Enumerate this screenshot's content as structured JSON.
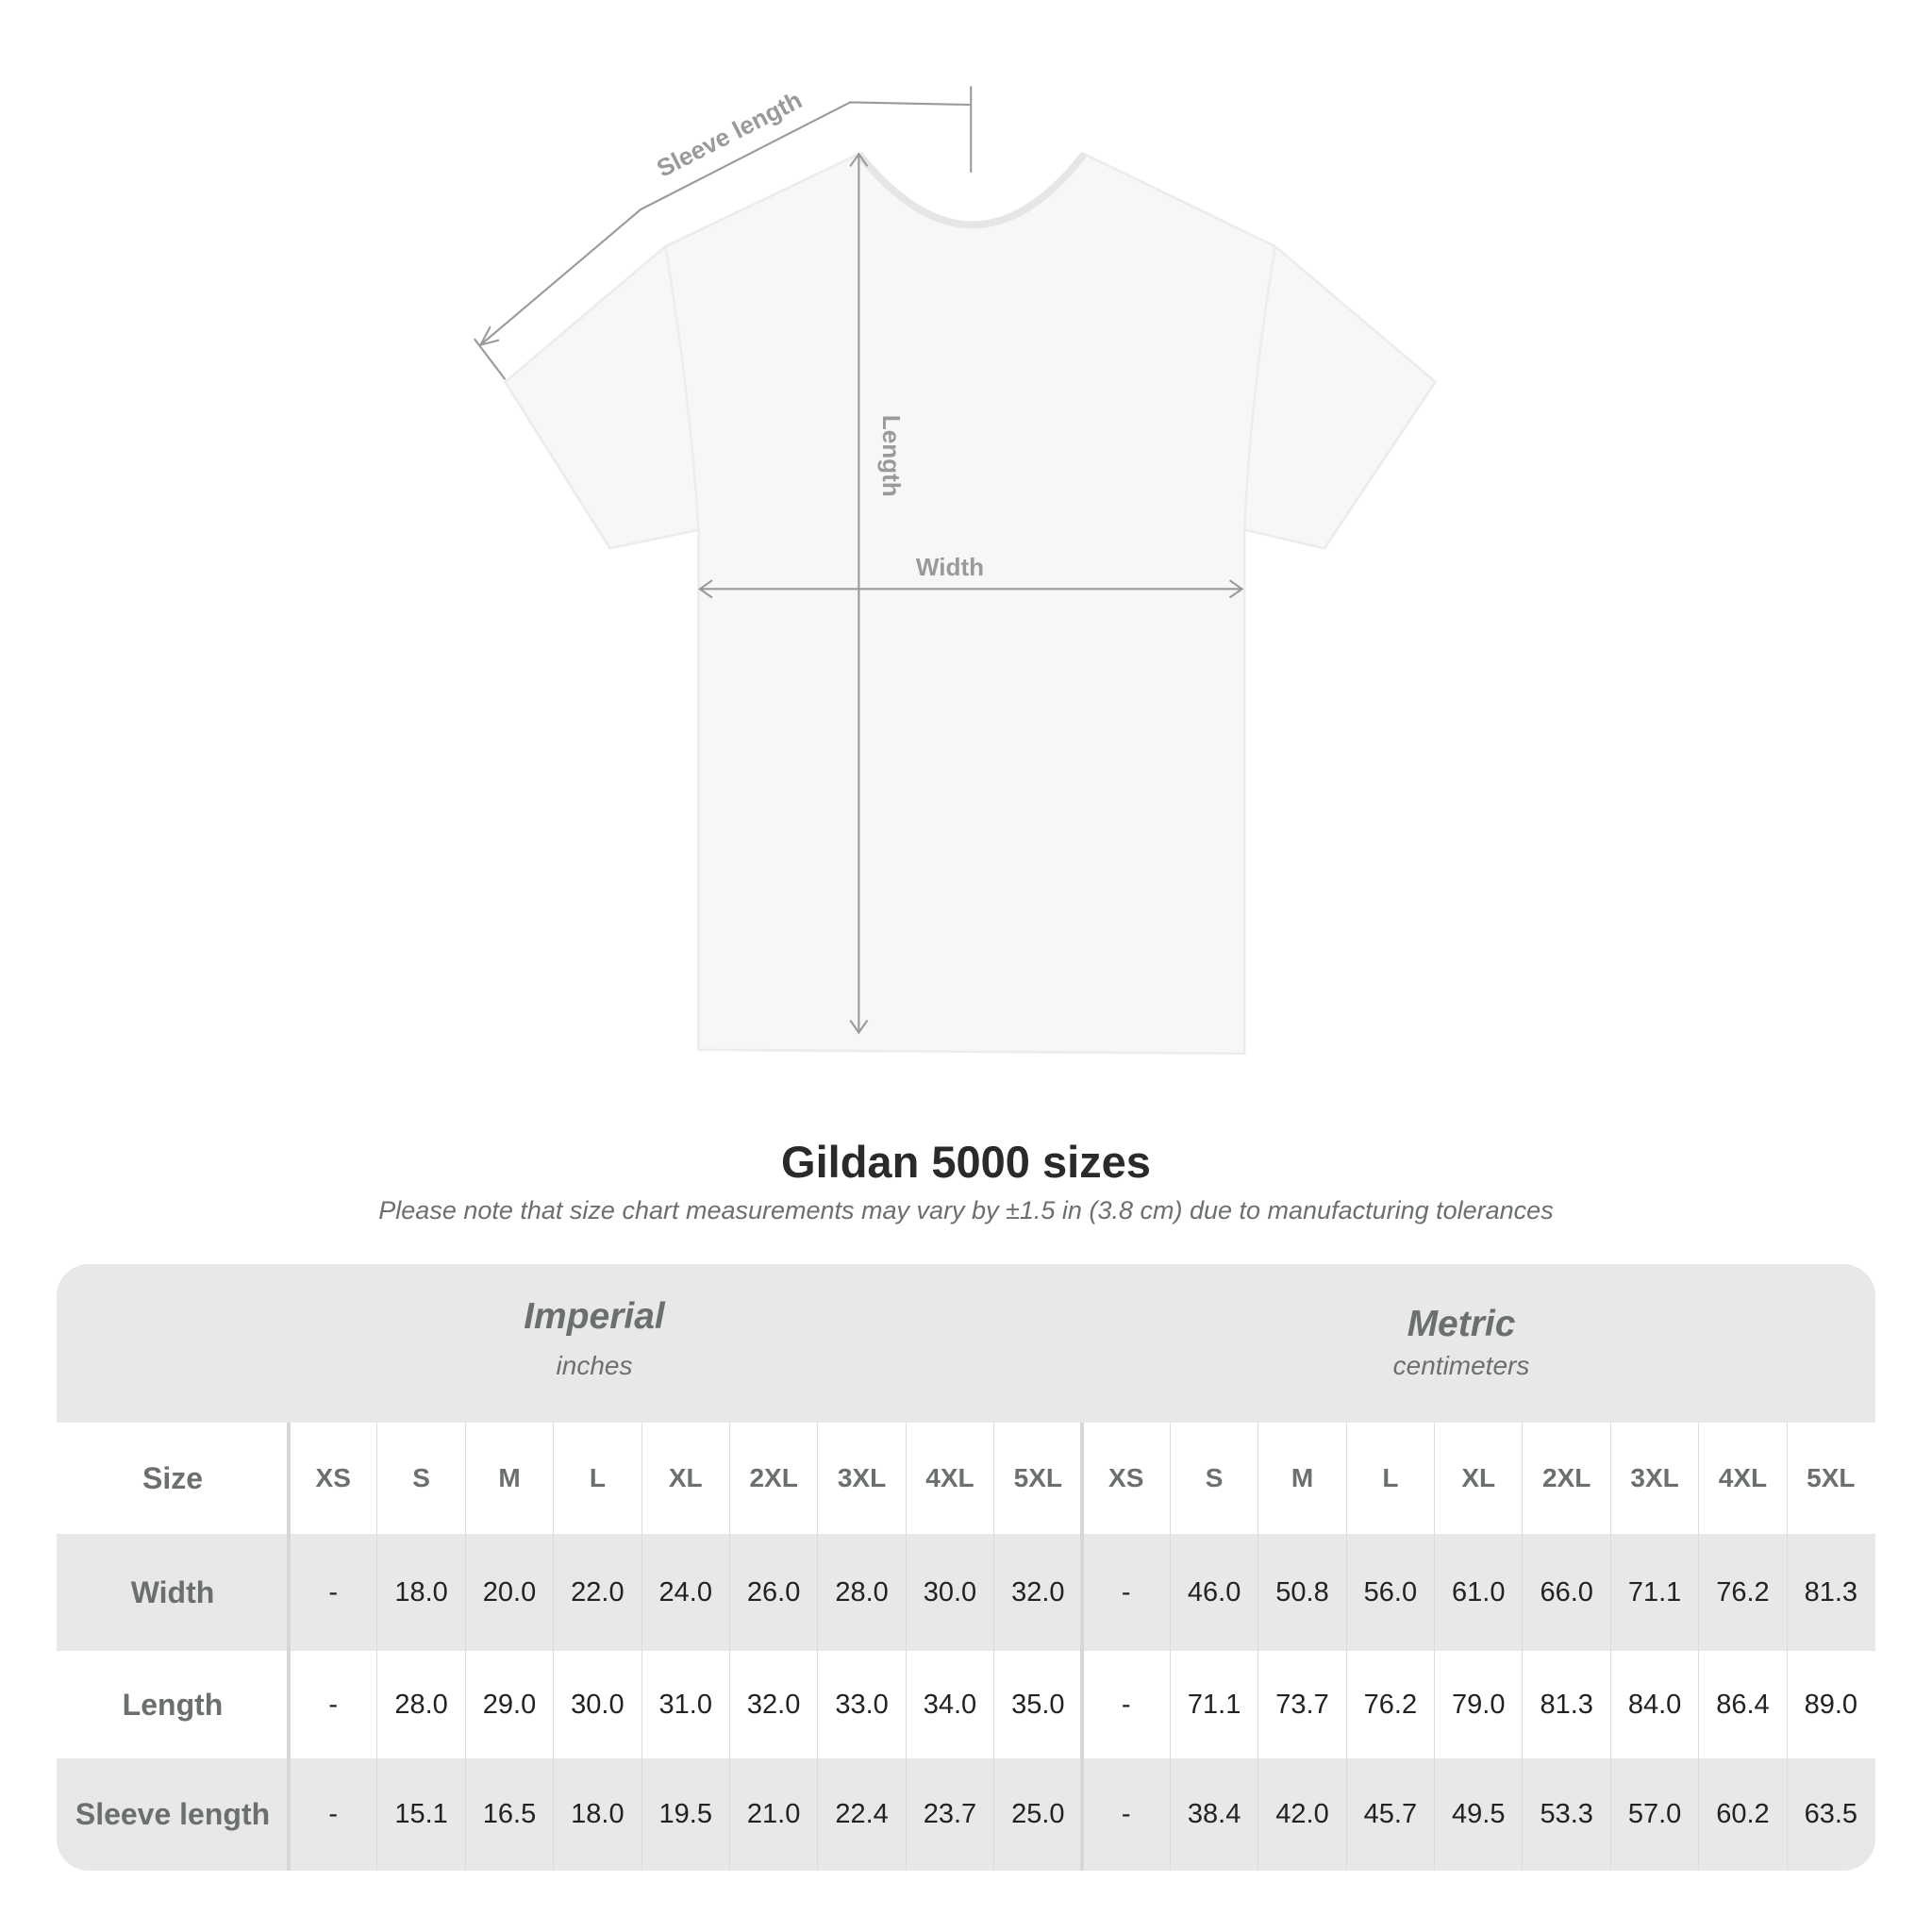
{
  "diagram": {
    "sleeve_label": "Sleeve length",
    "length_label": "Length",
    "width_label": "Width"
  },
  "title": "Gildan 5000 sizes",
  "note": "Please note that size chart measurements may vary by ±1.5 in (3.8 cm) due to manufacturing tolerances",
  "table": {
    "imperial": {
      "name": "Imperial",
      "unit": "inches"
    },
    "metric": {
      "name": "Metric",
      "unit": "centimeters"
    },
    "size_label": "Size",
    "sizes": [
      "XS",
      "S",
      "M",
      "L",
      "XL",
      "2XL",
      "3XL",
      "4XL",
      "5XL"
    ],
    "rows": [
      {
        "label": "Width",
        "imperial": [
          "-",
          "18.0",
          "20.0",
          "22.0",
          "24.0",
          "26.0",
          "28.0",
          "30.0",
          "32.0"
        ],
        "metric": [
          "-",
          "46.0",
          "50.8",
          "56.0",
          "61.0",
          "66.0",
          "71.1",
          "76.2",
          "81.3"
        ]
      },
      {
        "label": "Length",
        "imperial": [
          "-",
          "28.0",
          "29.0",
          "30.0",
          "31.0",
          "32.0",
          "33.0",
          "34.0",
          "35.0"
        ],
        "metric": [
          "-",
          "71.1",
          "73.7",
          "76.2",
          "79.0",
          "81.3",
          "84.0",
          "86.4",
          "89.0"
        ]
      },
      {
        "label": "Sleeve length",
        "imperial": [
          "-",
          "15.1",
          "16.5",
          "18.0",
          "19.5",
          "21.0",
          "22.4",
          "23.7",
          "25.0"
        ],
        "metric": [
          "-",
          "38.4",
          "42.0",
          "45.7",
          "49.5",
          "53.3",
          "57.0",
          "60.2",
          "63.5"
        ]
      }
    ]
  },
  "colors": {
    "header_bg": "#e8e8e8",
    "label": "#6b6f70",
    "value": "#222222",
    "annotation": "#9a9a9a"
  }
}
